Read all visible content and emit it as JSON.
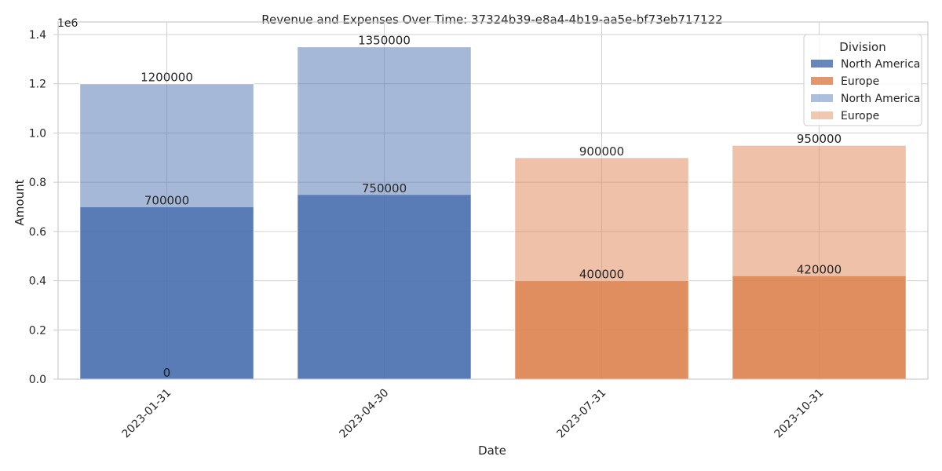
{
  "chart_data": {
    "type": "bar",
    "title": "Revenue and Expenses Over Time: 37324b39-e8a4-4b19-aa5e-bf73eb717122",
    "xlabel": "Date",
    "ylabel": "Amount",
    "y_offset_label": "1e6",
    "ylim": [
      0,
      1400000
    ],
    "y_ticks": [
      0,
      200000,
      400000,
      600000,
      800000,
      1000000,
      1200000,
      1400000
    ],
    "y_tick_labels": [
      "0.0",
      "0.2",
      "0.4",
      "0.6",
      "0.8",
      "1.0",
      "1.2",
      "1.4"
    ],
    "grid": true,
    "categories": [
      "2023-01-31",
      "2023-04-30",
      "2023-07-31",
      "2023-10-31"
    ],
    "colors": {
      "North America": "#4c72b0",
      "Europe": "#dd8452"
    },
    "series": [
      {
        "name": "North America",
        "layer": "expenses",
        "division": "North America",
        "opacity": 0.85,
        "values": [
          700000,
          750000,
          0,
          0
        ]
      },
      {
        "name": "Europe",
        "layer": "expenses",
        "division": "Europe",
        "opacity": 0.85,
        "values": [
          0,
          0,
          400000,
          420000
        ]
      },
      {
        "name": "North America",
        "layer": "revenue",
        "division": "North America",
        "opacity": 0.5,
        "values": [
          1200000,
          1350000,
          0,
          0
        ]
      },
      {
        "name": "Europe",
        "layer": "revenue",
        "division": "Europe",
        "opacity": 0.5,
        "values": [
          0,
          0,
          900000,
          950000
        ]
      }
    ],
    "data_labels": [
      {
        "category": "2023-01-31",
        "value": 1200000,
        "text": "1200000"
      },
      {
        "category": "2023-04-30",
        "value": 1350000,
        "text": "1350000"
      },
      {
        "category": "2023-07-31",
        "value": 900000,
        "text": "900000"
      },
      {
        "category": "2023-10-31",
        "value": 950000,
        "text": "950000"
      },
      {
        "category": "2023-01-31",
        "value": 700000,
        "text": "700000"
      },
      {
        "category": "2023-04-30",
        "value": 750000,
        "text": "750000"
      },
      {
        "category": "2023-07-31",
        "value": 400000,
        "text": "400000"
      },
      {
        "category": "2023-10-31",
        "value": 420000,
        "text": "420000"
      },
      {
        "category": "2023-01-31",
        "value": 0,
        "text": "0"
      },
      {
        "category": "2023-01-31",
        "value": 0,
        "text": "0"
      }
    ],
    "legend": {
      "title": "Division",
      "placement": "top-right",
      "entries": [
        {
          "label": "North America",
          "division": "North America",
          "opacity": 0.85
        },
        {
          "label": "Europe",
          "division": "Europe",
          "opacity": 0.85
        },
        {
          "label": "North America",
          "division": "North America",
          "opacity": 0.45
        },
        {
          "label": "Europe",
          "division": "Europe",
          "opacity": 0.45
        }
      ]
    }
  }
}
